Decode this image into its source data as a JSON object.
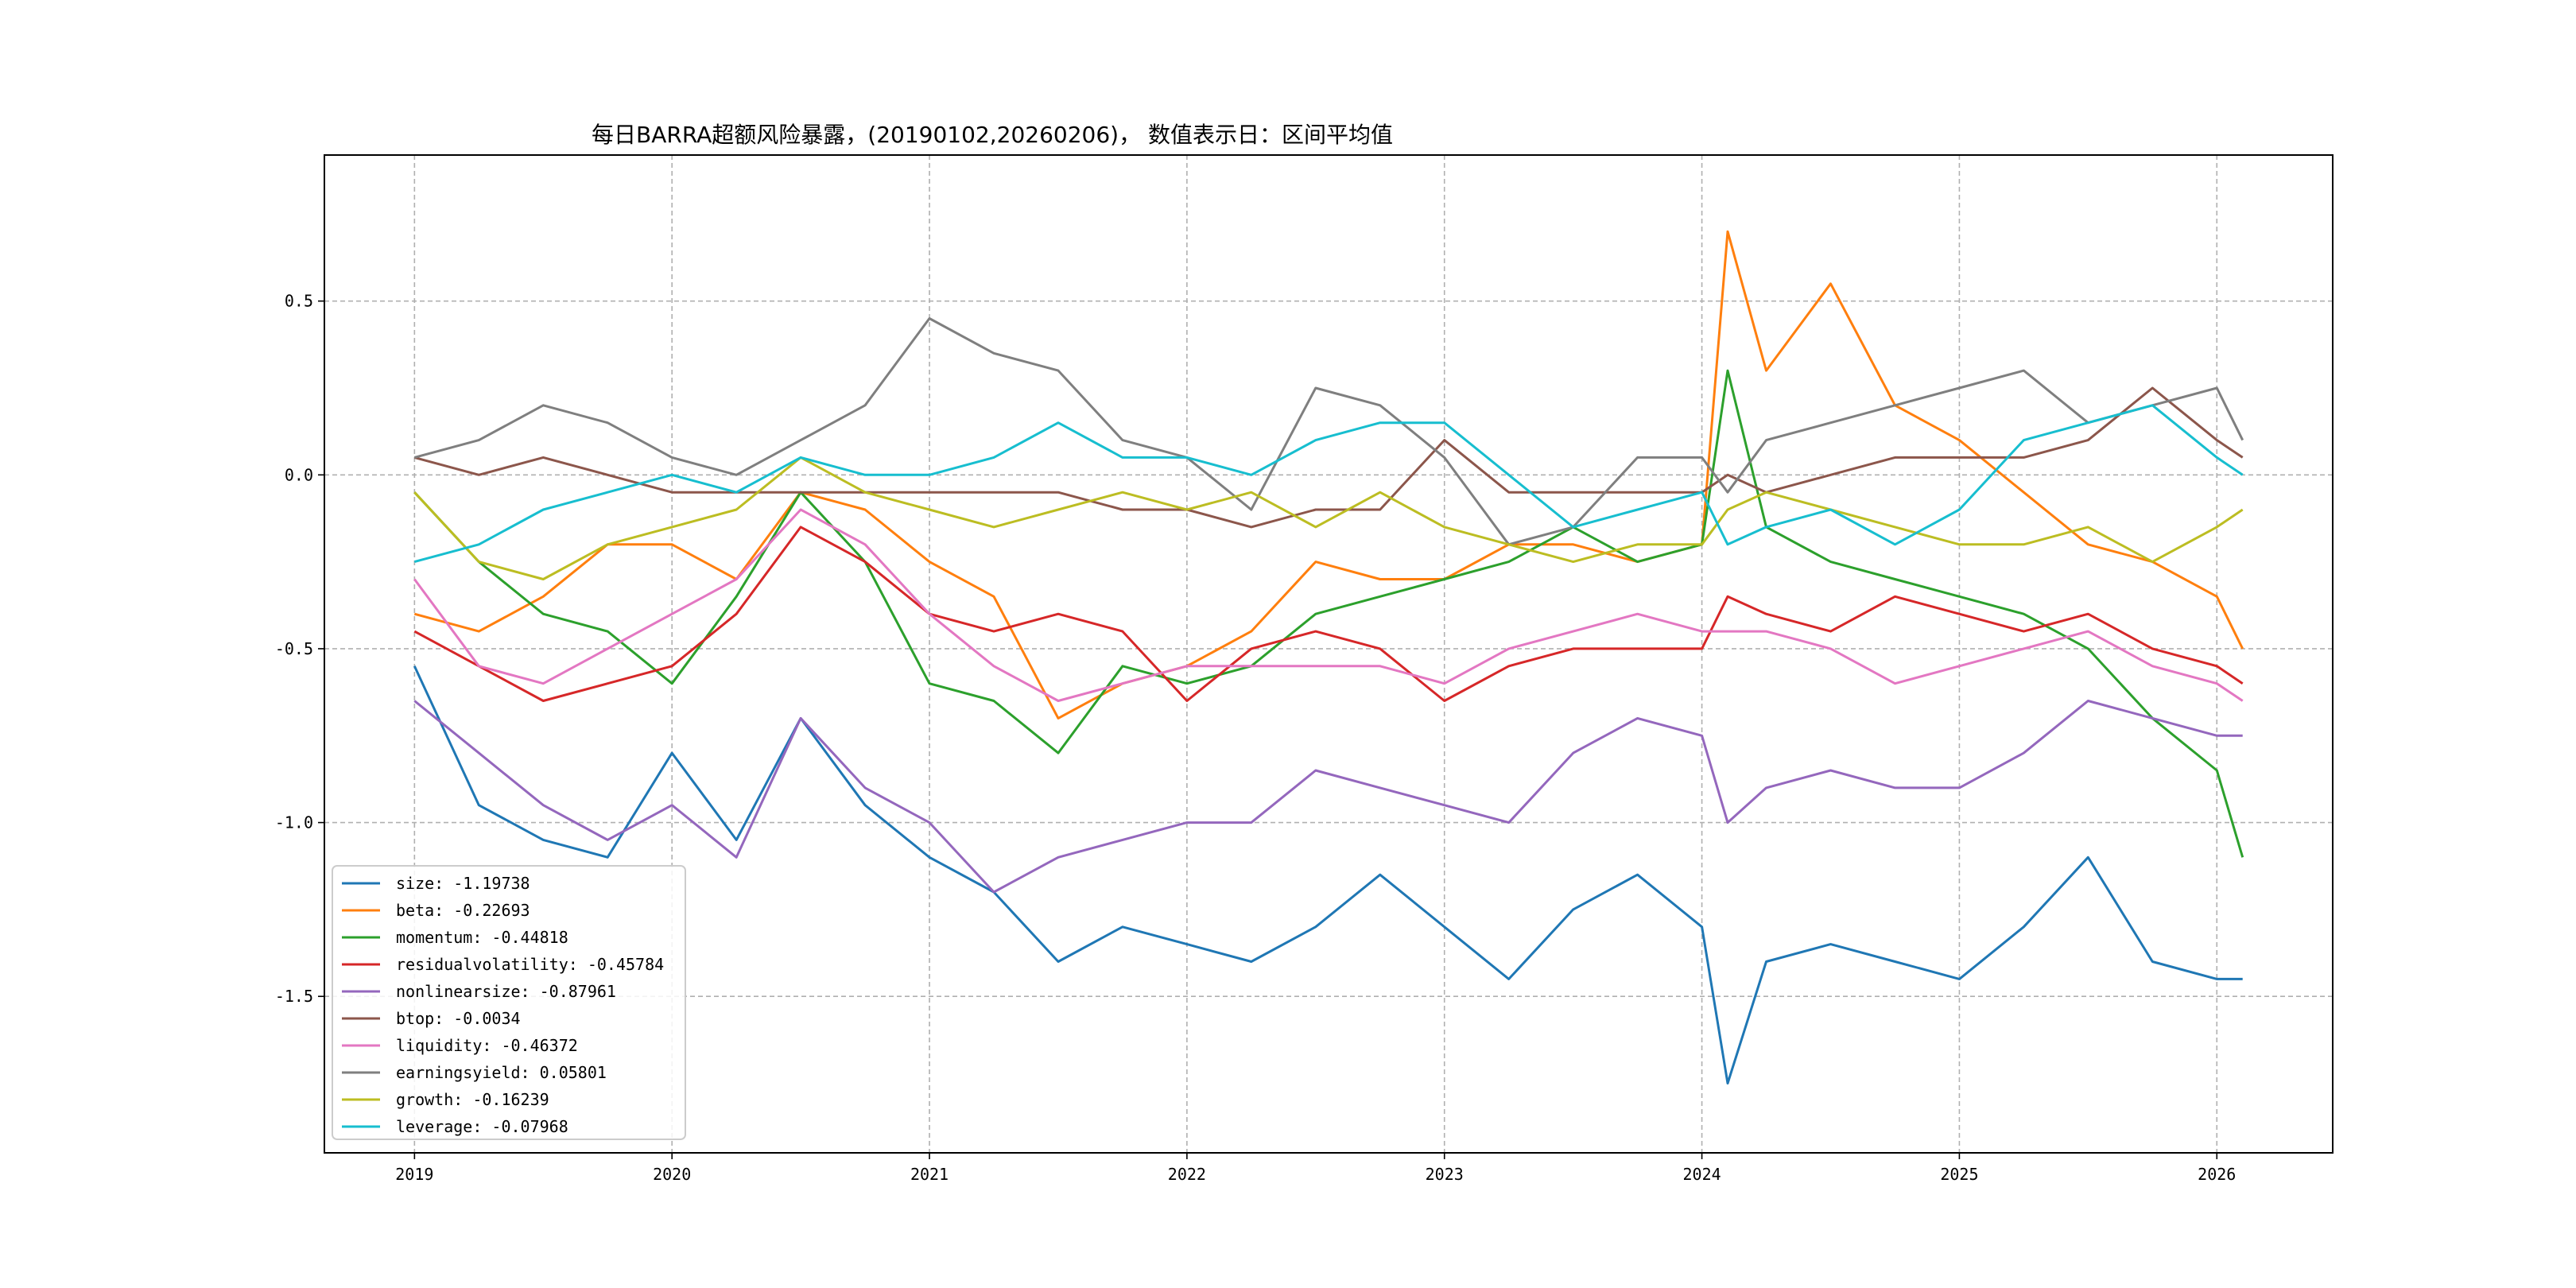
{
  "chart_data": {
    "type": "line",
    "title": "每日BARRA超额风险暴露，(20190102,20260206)， 数值表示日：区间平均值",
    "xlabel": "",
    "ylabel": "",
    "xlim": [
      2018.65,
      2026.45
    ],
    "ylim": [
      -1.95,
      0.92
    ],
    "grid": true,
    "legend_position": "lower-left",
    "x_ticks": [
      2019,
      2020,
      2021,
      2022,
      2023,
      2024,
      2025,
      2026
    ],
    "x_tick_labels": [
      "2019",
      "2020",
      "2021",
      "2022",
      "2023",
      "2024",
      "2025",
      "2026"
    ],
    "y_ticks": [
      -1.5,
      -1.0,
      -0.5,
      0.0,
      0.5
    ],
    "y_tick_labels": [
      "-1.5",
      "-1.0",
      "-0.5",
      "0.0",
      "0.5"
    ],
    "x": [
      2019.0,
      2019.25,
      2019.5,
      2019.75,
      2020.0,
      2020.25,
      2020.5,
      2020.75,
      2021.0,
      2021.25,
      2021.5,
      2021.75,
      2022.0,
      2022.25,
      2022.5,
      2022.75,
      2023.0,
      2023.25,
      2023.5,
      2023.75,
      2024.0,
      2024.1,
      2024.25,
      2024.5,
      2024.75,
      2025.0,
      2025.25,
      2025.5,
      2025.75,
      2026.0,
      2026.1
    ],
    "series": [
      {
        "name": "size",
        "legend_label": "size: -1.19738",
        "color": "#1f77b4",
        "values": [
          -0.55,
          -0.95,
          -1.05,
          -1.1,
          -0.8,
          -1.05,
          -0.7,
          -0.95,
          -1.1,
          -1.2,
          -1.4,
          -1.3,
          -1.35,
          -1.4,
          -1.3,
          -1.15,
          -1.3,
          -1.45,
          -1.25,
          -1.15,
          -1.3,
          -1.75,
          -1.4,
          -1.35,
          -1.4,
          -1.45,
          -1.3,
          -1.1,
          -1.4,
          -1.45,
          -1.45
        ]
      },
      {
        "name": "beta",
        "legend_label": "beta: -0.22693",
        "color": "#ff7f0e",
        "values": [
          -0.4,
          -0.45,
          -0.35,
          -0.2,
          -0.2,
          -0.3,
          -0.05,
          -0.1,
          -0.25,
          -0.35,
          -0.7,
          -0.6,
          -0.55,
          -0.45,
          -0.25,
          -0.3,
          -0.3,
          -0.2,
          -0.2,
          -0.25,
          -0.2,
          0.7,
          0.3,
          0.55,
          0.2,
          0.1,
          -0.05,
          -0.2,
          -0.25,
          -0.35,
          -0.5
        ]
      },
      {
        "name": "momentum",
        "legend_label": "momentum: -0.44818",
        "color": "#2ca02c",
        "values": [
          -0.05,
          -0.25,
          -0.4,
          -0.45,
          -0.6,
          -0.35,
          -0.05,
          -0.25,
          -0.6,
          -0.65,
          -0.8,
          -0.55,
          -0.6,
          -0.55,
          -0.4,
          -0.35,
          -0.3,
          -0.25,
          -0.15,
          -0.25,
          -0.2,
          0.3,
          -0.15,
          -0.25,
          -0.3,
          -0.35,
          -0.4,
          -0.5,
          -0.7,
          -0.85,
          -1.1
        ]
      },
      {
        "name": "residualvolatility",
        "legend_label": "residualvolatility: -0.45784",
        "color": "#d62728",
        "values": [
          -0.45,
          -0.55,
          -0.65,
          -0.6,
          -0.55,
          -0.4,
          -0.15,
          -0.25,
          -0.4,
          -0.45,
          -0.4,
          -0.45,
          -0.65,
          -0.5,
          -0.45,
          -0.5,
          -0.65,
          -0.55,
          -0.5,
          -0.5,
          -0.5,
          -0.35,
          -0.4,
          -0.45,
          -0.35,
          -0.4,
          -0.45,
          -0.4,
          -0.5,
          -0.55,
          -0.6
        ]
      },
      {
        "name": "nonlinearsize",
        "legend_label": "nonlinearsize: -0.87961",
        "color": "#9467bd",
        "values": [
          -0.65,
          -0.8,
          -0.95,
          -1.05,
          -0.95,
          -1.1,
          -0.7,
          -0.9,
          -1.0,
          -1.2,
          -1.1,
          -1.05,
          -1.0,
          -1.0,
          -0.85,
          -0.9,
          -0.95,
          -1.0,
          -0.8,
          -0.7,
          -0.75,
          -1.0,
          -0.9,
          -0.85,
          -0.9,
          -0.9,
          -0.8,
          -0.65,
          -0.7,
          -0.75,
          -0.75
        ]
      },
      {
        "name": "btop",
        "legend_label": "btop: -0.0034",
        "color": "#8c564b",
        "values": [
          0.05,
          0.0,
          0.05,
          0.0,
          -0.05,
          -0.05,
          -0.05,
          -0.05,
          -0.05,
          -0.05,
          -0.05,
          -0.1,
          -0.1,
          -0.15,
          -0.1,
          -0.1,
          0.1,
          -0.05,
          -0.05,
          -0.05,
          -0.05,
          0.0,
          -0.05,
          0.0,
          0.05,
          0.05,
          0.05,
          0.1,
          0.25,
          0.1,
          0.05
        ]
      },
      {
        "name": "liquidity",
        "legend_label": "liquidity: -0.46372",
        "color": "#e377c2",
        "values": [
          -0.3,
          -0.55,
          -0.6,
          -0.5,
          -0.4,
          -0.3,
          -0.1,
          -0.2,
          -0.4,
          -0.55,
          -0.65,
          -0.6,
          -0.55,
          -0.55,
          -0.55,
          -0.55,
          -0.6,
          -0.5,
          -0.45,
          -0.4,
          -0.45,
          -0.45,
          -0.45,
          -0.5,
          -0.6,
          -0.55,
          -0.5,
          -0.45,
          -0.55,
          -0.6,
          -0.65
        ]
      },
      {
        "name": "earningsyield",
        "legend_label": "earningsyield: 0.05801",
        "color": "#7f7f7f",
        "values": [
          0.05,
          0.1,
          0.2,
          0.15,
          0.05,
          0.0,
          0.1,
          0.2,
          0.45,
          0.35,
          0.3,
          0.1,
          0.05,
          -0.1,
          0.25,
          0.2,
          0.05,
          -0.2,
          -0.15,
          0.05,
          0.05,
          -0.05,
          0.1,
          0.15,
          0.2,
          0.25,
          0.3,
          0.15,
          0.2,
          0.25,
          0.1
        ]
      },
      {
        "name": "growth",
        "legend_label": "growth: -0.16239",
        "color": "#bcbd22",
        "values": [
          -0.05,
          -0.25,
          -0.3,
          -0.2,
          -0.15,
          -0.1,
          0.05,
          -0.05,
          -0.1,
          -0.15,
          -0.1,
          -0.05,
          -0.1,
          -0.05,
          -0.15,
          -0.05,
          -0.15,
          -0.2,
          -0.25,
          -0.2,
          -0.2,
          -0.1,
          -0.05,
          -0.1,
          -0.15,
          -0.2,
          -0.2,
          -0.15,
          -0.25,
          -0.15,
          -0.1
        ]
      },
      {
        "name": "leverage",
        "legend_label": "leverage: -0.07968",
        "color": "#17becf",
        "values": [
          -0.25,
          -0.2,
          -0.1,
          -0.05,
          0.0,
          -0.05,
          0.05,
          0.0,
          0.0,
          0.05,
          0.15,
          0.05,
          0.05,
          0.0,
          0.1,
          0.15,
          0.15,
          0.0,
          -0.15,
          -0.1,
          -0.05,
          -0.2,
          -0.15,
          -0.1,
          -0.2,
          -0.1,
          0.1,
          0.15,
          0.2,
          0.05,
          0.0
        ]
      }
    ]
  }
}
